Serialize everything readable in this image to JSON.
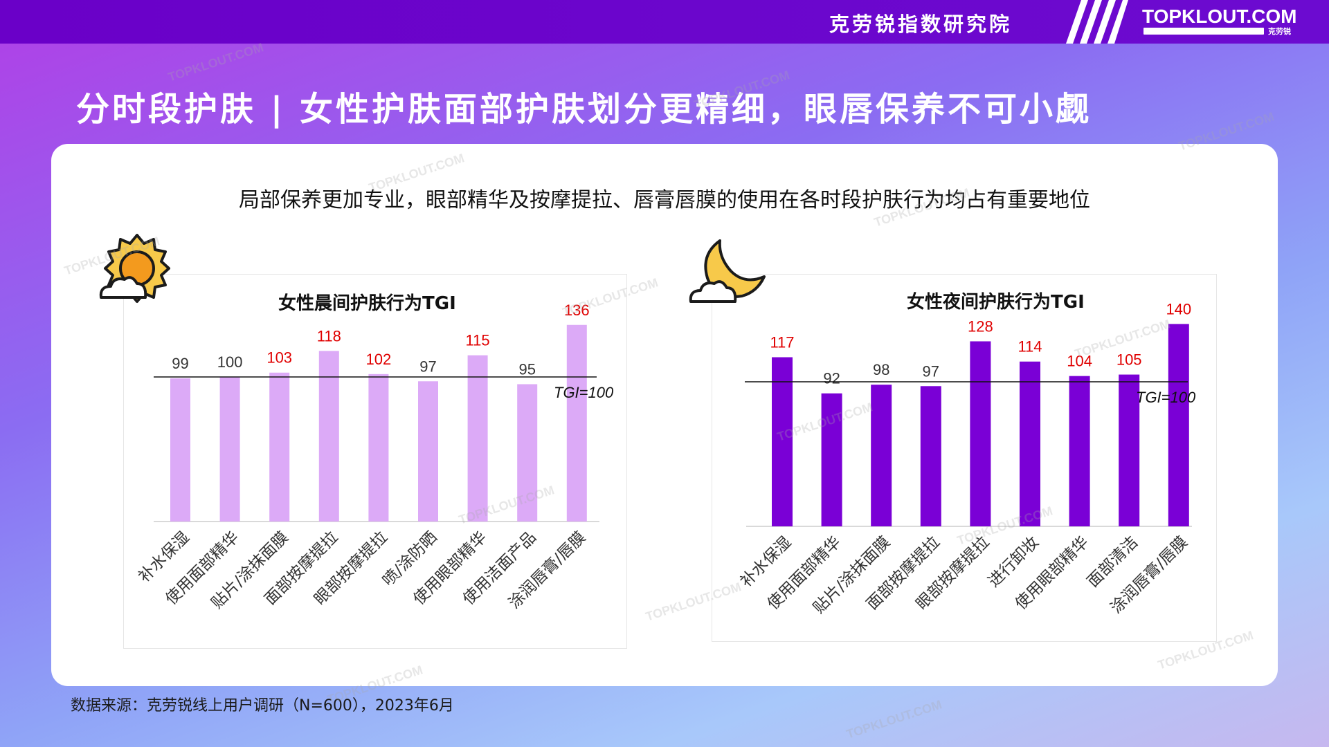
{
  "header": {
    "org_name": "克劳锐指数研究院",
    "brand": "TOPKLOUT.COM",
    "brand_tag": "克劳锐"
  },
  "title": "分时段护肤 | 女性护肤面部护肤划分更精细，眼唇保养不可小觑",
  "subtitle": "局部保养更加专业，眼部精华及按摩提拉、唇膏唇膜的使用在各时段护肤行为均占有重要地位",
  "source": "数据来源：克劳锐线上用户调研（N=600），2023年6月",
  "watermark": "TOPKLOUT.COM",
  "icons": {
    "morning": "sun-cloud-icon",
    "night": "moon-cloud-icon"
  },
  "colors": {
    "morning_bar": "#dcaaf7",
    "night_bar": "#7a00d6",
    "highlight_label": "#e00000",
    "normal_label": "#333333",
    "topbar": "#6a00c8"
  },
  "chart_data": [
    {
      "type": "bar",
      "title": "女性晨间护肤行为TGI",
      "categories": [
        "补水保湿",
        "使用面部精华",
        "贴片/涂抹面膜",
        "面部按摩提拉",
        "眼部按摩提拉",
        "喷/涂防晒",
        "使用眼部精华",
        "使用洁面产品",
        "涂润唇膏/唇膜"
      ],
      "values": [
        99,
        100,
        103,
        118,
        102,
        97,
        115,
        95,
        136
      ],
      "reference_line": {
        "value": 100,
        "label": "TGI=100"
      },
      "highlight_rule": "values above 100 shown in red",
      "ylim": [
        0,
        150
      ],
      "grid": false,
      "legend": "none"
    },
    {
      "type": "bar",
      "title": "女性夜间护肤行为TGI",
      "categories": [
        "补水保湿",
        "使用面部精华",
        "贴片/涂抹面膜",
        "面部按摩提拉",
        "眼部按摩提拉",
        "进行卸妆",
        "使用眼部精华",
        "面部清洁",
        "涂润唇膏/唇膜"
      ],
      "values": [
        117,
        92,
        98,
        97,
        128,
        114,
        104,
        105,
        140
      ],
      "reference_line": {
        "value": 100,
        "label": "TGI=100"
      },
      "highlight_rule": "values above 100 shown in red",
      "ylim": [
        0,
        150
      ],
      "grid": false,
      "legend": "none"
    }
  ]
}
